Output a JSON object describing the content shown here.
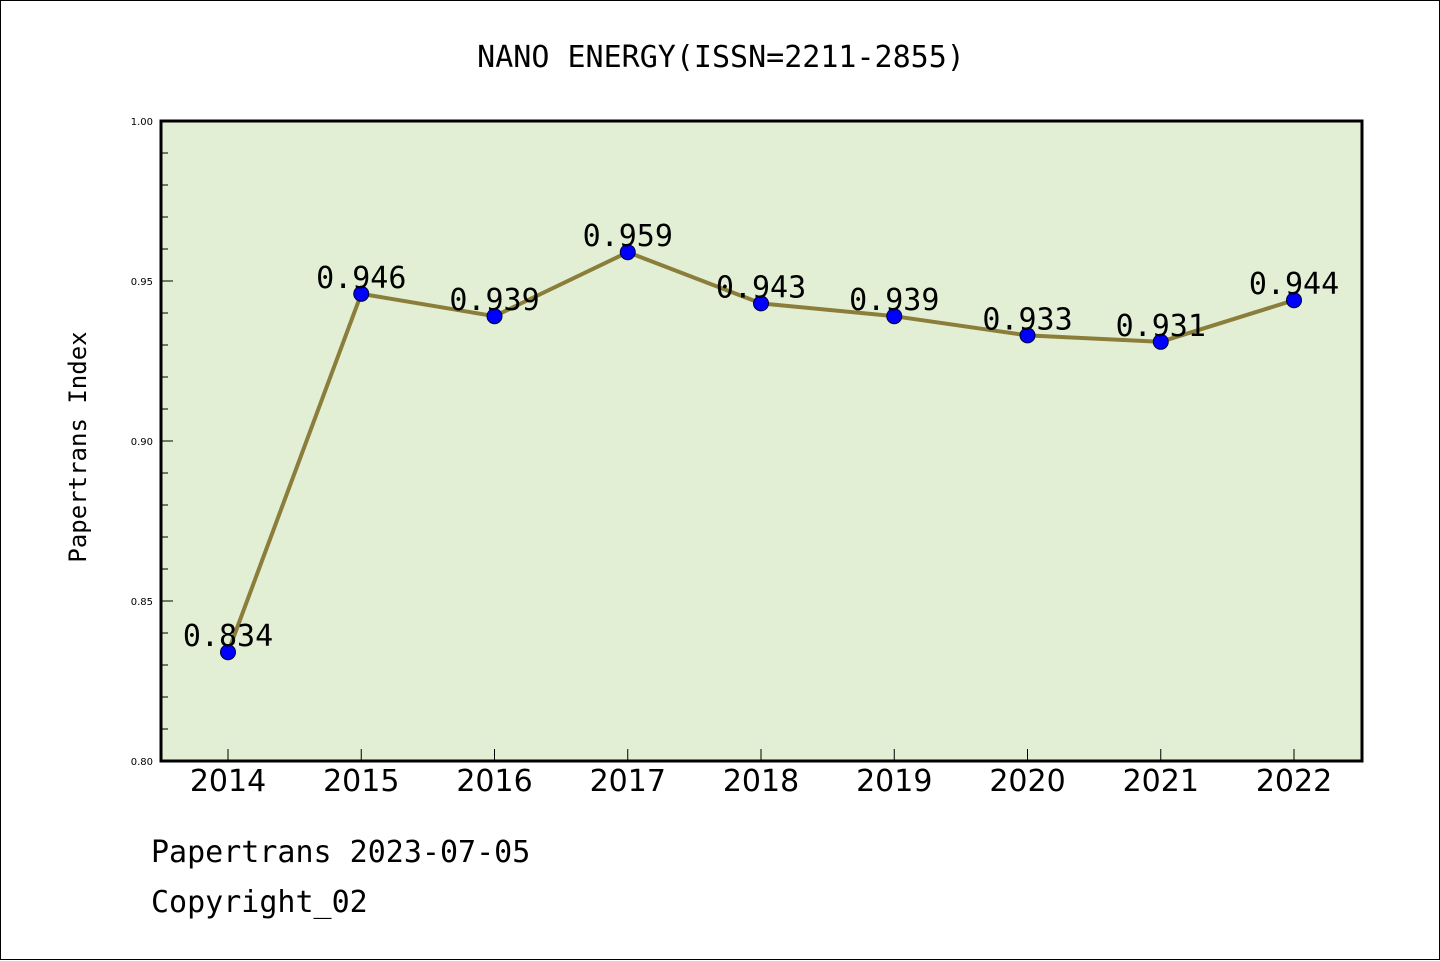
{
  "chart_data": {
    "type": "line",
    "title": "NANO ENERGY(ISSN=2211-2855)",
    "xlabel": "",
    "ylabel": "Papertrans Index",
    "categories": [
      "2014",
      "2015",
      "2016",
      "2017",
      "2018",
      "2019",
      "2020",
      "2021",
      "2022"
    ],
    "series": [
      {
        "values": [
          0.834,
          0.946,
          0.939,
          0.959,
          0.943,
          0.939,
          0.933,
          0.931,
          0.944
        ],
        "data_labels": [
          "0.834",
          "0.946",
          "0.939",
          "0.959",
          "0.943",
          "0.939",
          "0.933",
          "0.931",
          "0.944"
        ]
      }
    ],
    "ylim": [
      0.8,
      1.0
    ],
    "yticks": [
      0.8,
      0.85,
      0.9,
      0.95,
      1.0
    ],
    "ytick_labels": [
      "0.80",
      "0.85",
      "0.90",
      "0.95",
      "1.00"
    ],
    "grid": false,
    "legend": "none"
  },
  "colors": {
    "plot_background": "#e2efd5",
    "line": "#8b7d3a",
    "marker": "#0000ff",
    "axis": "#000000"
  },
  "footer": {
    "line1": "Papertrans 2023-07-05",
    "line2": "Copyright_02"
  }
}
